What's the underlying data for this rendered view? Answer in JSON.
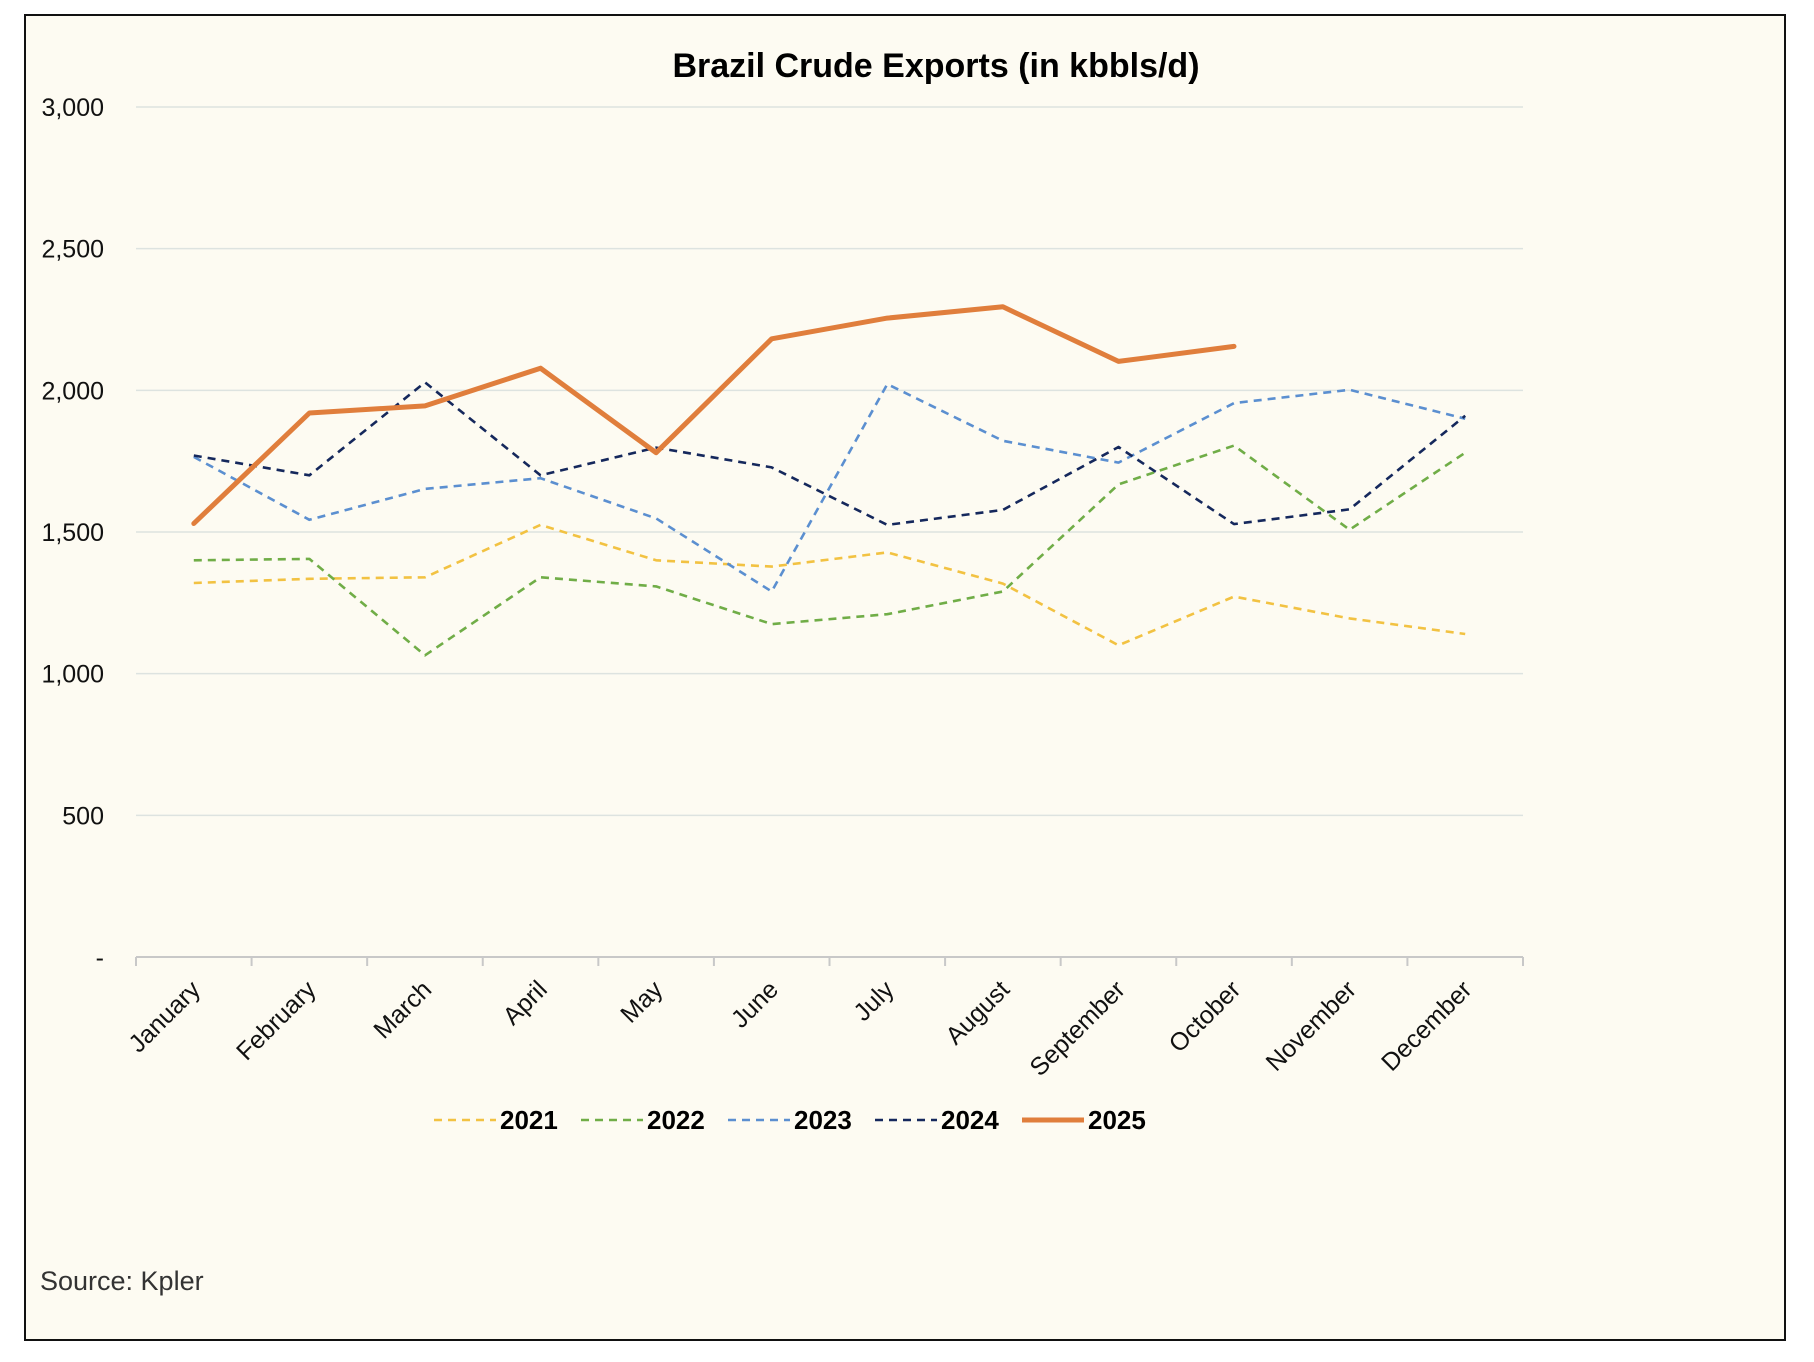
{
  "chart_data": {
    "type": "line",
    "title": "Brazil Crude Exports (in kbbls/d)",
    "xlabel": "",
    "ylabel": "",
    "ylim": [
      0,
      3000
    ],
    "y_ticks": [
      0,
      500,
      1000,
      1500,
      2000,
      2500,
      3000
    ],
    "y_tick_labels": [
      "-",
      "500",
      "1,000",
      "1,500",
      "2,000",
      "2,500",
      "3,000"
    ],
    "grid": true,
    "legend_position": "bottom",
    "categories": [
      "January",
      "February",
      "March",
      "April",
      "May",
      "June",
      "July",
      "August",
      "September",
      "October",
      "November",
      "December"
    ],
    "series": [
      {
        "name": "2021",
        "color": "#f2c242",
        "style": "dashed",
        "values": [
          1320,
          1335,
          1340,
          1525,
          1400,
          1378,
          1428,
          1318,
          1100,
          1272,
          1195,
          1140
        ]
      },
      {
        "name": "2022",
        "color": "#70ad47",
        "style": "dashed",
        "values": [
          1400,
          1405,
          1065,
          1340,
          1308,
          1175,
          1210,
          1290,
          1668,
          1805,
          1508,
          1780
        ]
      },
      {
        "name": "2023",
        "color": "#5b8fd0",
        "style": "dashed",
        "values": [
          1765,
          1543,
          1652,
          1690,
          1548,
          1290,
          2022,
          1822,
          1745,
          1955,
          2002,
          1900
        ]
      },
      {
        "name": "2024",
        "color": "#15285c",
        "style": "dashed",
        "values": [
          1770,
          1700,
          2028,
          1700,
          1798,
          1728,
          1525,
          1578,
          1800,
          1528,
          1580,
          1910
        ]
      },
      {
        "name": "2025",
        "color": "#e07e3c",
        "style": "solid",
        "values": [
          1530,
          1920,
          1945,
          2078,
          1780,
          2182,
          2255,
          2295,
          2102,
          2155,
          null,
          null
        ]
      }
    ]
  },
  "source_text": "Source: Kpler"
}
